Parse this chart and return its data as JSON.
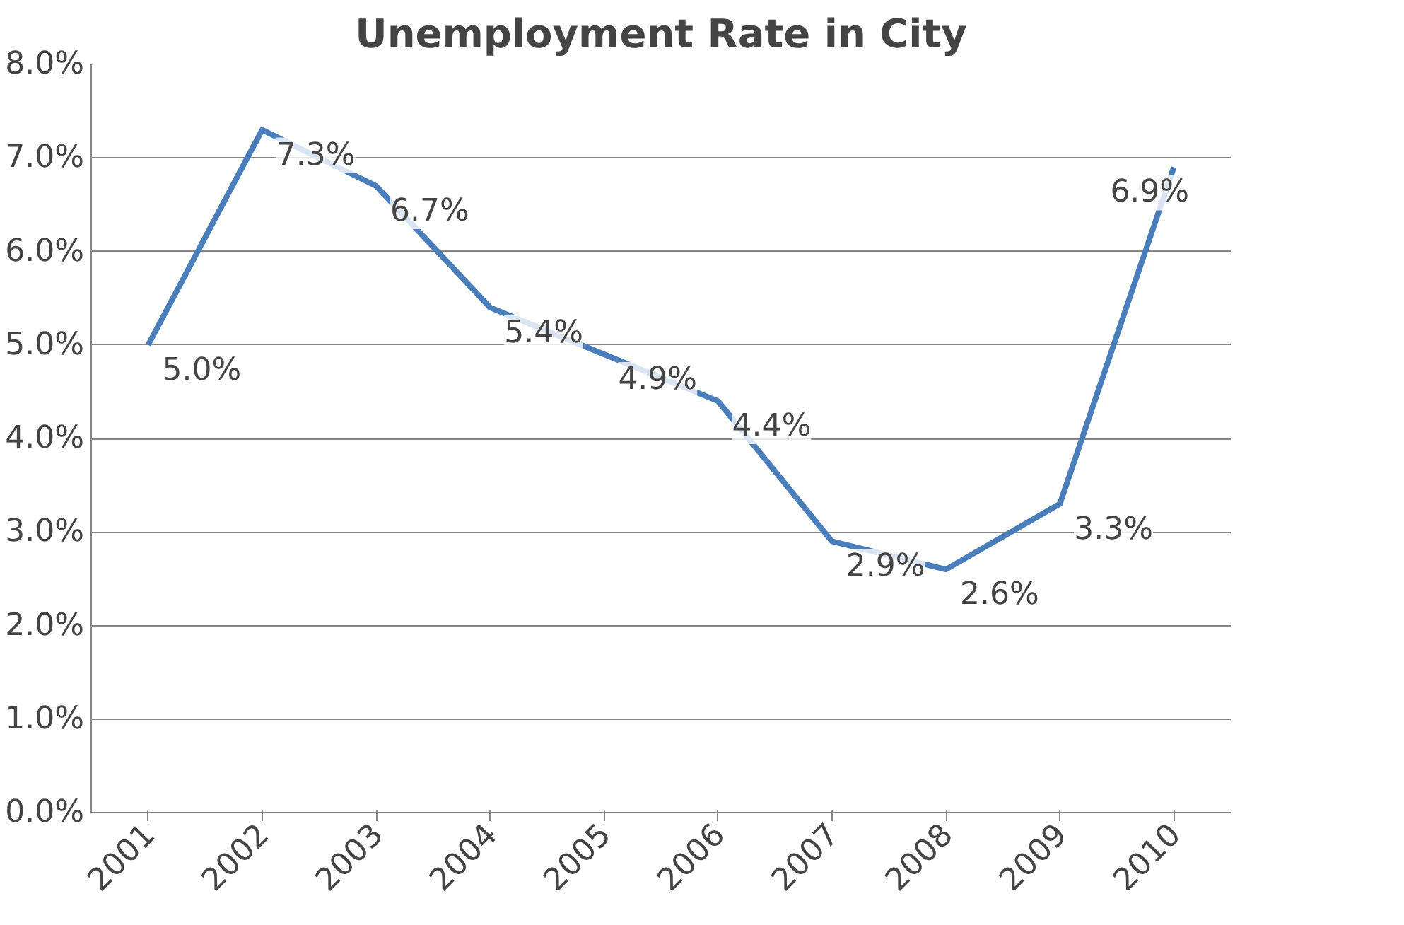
{
  "chart_data": {
    "type": "line",
    "title": "Unemployment Rate in City",
    "categories": [
      "2001",
      "2002",
      "2003",
      "2004",
      "2005",
      "2006",
      "2007",
      "2008",
      "2009",
      "2010"
    ],
    "series": [
      {
        "color": "#4a7ebb",
        "values": [
          5.0,
          7.3,
          6.7,
          5.4,
          4.9,
          4.4,
          2.9,
          2.6,
          3.3,
          6.9
        ],
        "value_labels": [
          "5.0%",
          "7.3%",
          "6.7%",
          "5.4%",
          "4.9%",
          "4.4%",
          "2.9%",
          "2.6%",
          "3.3%",
          "6.9%"
        ]
      }
    ],
    "ylim": [
      0,
      8
    ],
    "yticks": [
      {
        "value": 0,
        "label": "0.0%"
      },
      {
        "value": 1,
        "label": "1.0%"
      },
      {
        "value": 2,
        "label": "2.0%"
      },
      {
        "value": 3,
        "label": "3.0%"
      },
      {
        "value": 4,
        "label": "4.0%"
      },
      {
        "value": 5,
        "label": "5.0%"
      },
      {
        "value": 6,
        "label": "6.0%"
      },
      {
        "value": 7,
        "label": "7.0%"
      },
      {
        "value": 8,
        "label": "8.0%"
      }
    ],
    "grid": "y",
    "marker": "none",
    "line_style": "solid"
  }
}
